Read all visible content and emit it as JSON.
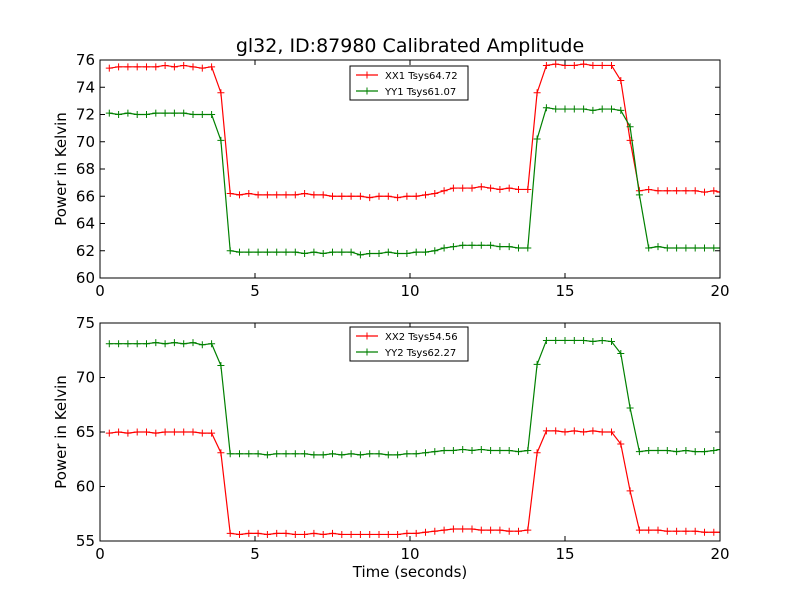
{
  "chart_data": {
    "type": "line",
    "title": "gl32, ID:87980 Calibrated Amplitude",
    "xlabel": "Time (seconds)",
    "colors": {
      "red": "#ff0000",
      "green": "#008000"
    },
    "grid": false,
    "subplots": [
      {
        "ylabel": "Power in Kelvin",
        "xlim": [
          0,
          20
        ],
        "ylim": [
          60,
          76
        ],
        "xticks": [
          "0",
          "5",
          "10",
          "15",
          "20"
        ],
        "yticks": [
          "60",
          "62",
          "64",
          "66",
          "68",
          "70",
          "72",
          "74",
          "76"
        ],
        "legend_position": "top-center",
        "series": [
          {
            "name": "XX1 Tsys64.72",
            "color": "#ff0000",
            "x": [
              0.3,
              0.6,
              0.9,
              1.2,
              1.5,
              1.8,
              2.1,
              2.4,
              2.7,
              3.0,
              3.3,
              3.6,
              3.9,
              4.2,
              4.5,
              4.8,
              5.1,
              5.4,
              5.7,
              6.0,
              6.3,
              6.6,
              6.9,
              7.2,
              7.5,
              7.8,
              8.1,
              8.4,
              8.7,
              9.0,
              9.3,
              9.6,
              9.9,
              10.2,
              10.5,
              10.8,
              11.1,
              11.4,
              11.7,
              12.0,
              12.3,
              12.6,
              12.9,
              13.2,
              13.5,
              13.8,
              14.1,
              14.4,
              14.7,
              15.0,
              15.3,
              15.6,
              15.9,
              16.2,
              16.5,
              16.8,
              17.1,
              17.4,
              17.7,
              18.0,
              18.3,
              18.6,
              18.9,
              19.2,
              19.5,
              19.8,
              20.0
            ],
            "y": [
              75.4,
              75.5,
              75.5,
              75.5,
              75.5,
              75.5,
              75.6,
              75.5,
              75.6,
              75.5,
              75.4,
              75.5,
              73.6,
              66.2,
              66.1,
              66.2,
              66.1,
              66.1,
              66.1,
              66.1,
              66.1,
              66.2,
              66.1,
              66.1,
              66.0,
              66.0,
              66.0,
              66.0,
              65.9,
              66.0,
              66.0,
              65.9,
              66.0,
              66.0,
              66.1,
              66.2,
              66.4,
              66.6,
              66.6,
              66.6,
              66.7,
              66.6,
              66.5,
              66.6,
              66.5,
              66.5,
              73.6,
              75.6,
              75.7,
              75.6,
              75.6,
              75.7,
              75.6,
              75.6,
              75.6,
              74.5,
              70.1,
              66.4,
              66.5,
              66.4,
              66.4,
              66.4,
              66.4,
              66.4,
              66.3,
              66.4,
              66.3
            ]
          },
          {
            "name": "YY1 Tsys61.07",
            "color": "#008000",
            "x": [
              0.3,
              0.6,
              0.9,
              1.2,
              1.5,
              1.8,
              2.1,
              2.4,
              2.7,
              3.0,
              3.3,
              3.6,
              3.9,
              4.2,
              4.5,
              4.8,
              5.1,
              5.4,
              5.7,
              6.0,
              6.3,
              6.6,
              6.9,
              7.2,
              7.5,
              7.8,
              8.1,
              8.4,
              8.7,
              9.0,
              9.3,
              9.6,
              9.9,
              10.2,
              10.5,
              10.8,
              11.1,
              11.4,
              11.7,
              12.0,
              12.3,
              12.6,
              12.9,
              13.2,
              13.5,
              13.8,
              14.1,
              14.4,
              14.7,
              15.0,
              15.3,
              15.6,
              15.9,
              16.2,
              16.5,
              16.8,
              17.1,
              17.4,
              17.7,
              18.0,
              18.3,
              18.6,
              18.9,
              19.2,
              19.5,
              19.8,
              20.0
            ],
            "y": [
              72.1,
              72.0,
              72.1,
              72.0,
              72.0,
              72.1,
              72.1,
              72.1,
              72.1,
              72.0,
              72.0,
              72.0,
              70.1,
              62.0,
              61.9,
              61.9,
              61.9,
              61.9,
              61.9,
              61.9,
              61.9,
              61.8,
              61.9,
              61.8,
              61.9,
              61.9,
              61.9,
              61.7,
              61.8,
              61.8,
              61.9,
              61.8,
              61.8,
              61.9,
              61.9,
              62.0,
              62.2,
              62.3,
              62.4,
              62.4,
              62.4,
              62.4,
              62.3,
              62.3,
              62.2,
              62.2,
              70.2,
              72.5,
              72.4,
              72.4,
              72.4,
              72.4,
              72.3,
              72.4,
              72.4,
              72.3,
              71.1,
              66.1,
              62.2,
              62.3,
              62.2,
              62.2,
              62.2,
              62.2,
              62.2,
              62.2,
              62.2
            ]
          }
        ]
      },
      {
        "ylabel": "Power in Kelvin",
        "xlim": [
          0,
          20
        ],
        "ylim": [
          55,
          75
        ],
        "xticks": [
          "0",
          "5",
          "10",
          "15",
          "20"
        ],
        "yticks": [
          "55",
          "60",
          "65",
          "70",
          "75"
        ],
        "legend_position": "top-center",
        "series": [
          {
            "name": "XX2 Tsys54.56",
            "color": "#ff0000",
            "x": [
              0.3,
              0.6,
              0.9,
              1.2,
              1.5,
              1.8,
              2.1,
              2.4,
              2.7,
              3.0,
              3.3,
              3.6,
              3.9,
              4.2,
              4.5,
              4.8,
              5.1,
              5.4,
              5.7,
              6.0,
              6.3,
              6.6,
              6.9,
              7.2,
              7.5,
              7.8,
              8.1,
              8.4,
              8.7,
              9.0,
              9.3,
              9.6,
              9.9,
              10.2,
              10.5,
              10.8,
              11.1,
              11.4,
              11.7,
              12.0,
              12.3,
              12.6,
              12.9,
              13.2,
              13.5,
              13.8,
              14.1,
              14.4,
              14.7,
              15.0,
              15.3,
              15.6,
              15.9,
              16.2,
              16.5,
              16.8,
              17.1,
              17.4,
              17.7,
              18.0,
              18.3,
              18.6,
              18.9,
              19.2,
              19.5,
              19.8,
              20.0
            ],
            "y": [
              64.9,
              65.0,
              64.9,
              65.0,
              65.0,
              64.9,
              65.0,
              65.0,
              65.0,
              65.0,
              64.9,
              64.9,
              63.1,
              55.7,
              55.6,
              55.7,
              55.7,
              55.6,
              55.7,
              55.7,
              55.6,
              55.6,
              55.7,
              55.6,
              55.7,
              55.6,
              55.6,
              55.6,
              55.6,
              55.6,
              55.6,
              55.6,
              55.7,
              55.7,
              55.8,
              55.9,
              56.0,
              56.1,
              56.1,
              56.1,
              56.0,
              56.0,
              56.0,
              55.9,
              55.9,
              56.0,
              63.1,
              65.1,
              65.1,
              65.0,
              65.1,
              65.0,
              65.1,
              65.0,
              65.0,
              63.9,
              59.6,
              56.0,
              56.0,
              56.0,
              55.9,
              55.9,
              55.9,
              55.9,
              55.8,
              55.8,
              55.8
            ]
          },
          {
            "name": "YY2 Tsys62.27",
            "color": "#008000",
            "x": [
              0.3,
              0.6,
              0.9,
              1.2,
              1.5,
              1.8,
              2.1,
              2.4,
              2.7,
              3.0,
              3.3,
              3.6,
              3.9,
              4.2,
              4.5,
              4.8,
              5.1,
              5.4,
              5.7,
              6.0,
              6.3,
              6.6,
              6.9,
              7.2,
              7.5,
              7.8,
              8.1,
              8.4,
              8.7,
              9.0,
              9.3,
              9.6,
              9.9,
              10.2,
              10.5,
              10.8,
              11.1,
              11.4,
              11.7,
              12.0,
              12.3,
              12.6,
              12.9,
              13.2,
              13.5,
              13.8,
              14.1,
              14.4,
              14.7,
              15.0,
              15.3,
              15.6,
              15.9,
              16.2,
              16.5,
              16.8,
              17.1,
              17.4,
              17.7,
              18.0,
              18.3,
              18.6,
              18.9,
              19.2,
              19.5,
              19.8,
              20.0
            ],
            "y": [
              73.1,
              73.1,
              73.1,
              73.1,
              73.1,
              73.2,
              73.1,
              73.2,
              73.1,
              73.2,
              73.0,
              73.1,
              71.1,
              63.0,
              63.0,
              63.0,
              63.0,
              62.9,
              63.0,
              63.0,
              63.0,
              63.0,
              62.9,
              62.9,
              63.0,
              62.9,
              63.0,
              62.9,
              63.0,
              63.0,
              62.9,
              62.9,
              63.0,
              63.0,
              63.1,
              63.2,
              63.3,
              63.3,
              63.4,
              63.3,
              63.4,
              63.3,
              63.3,
              63.3,
              63.2,
              63.3,
              71.2,
              73.4,
              73.4,
              73.4,
              73.4,
              73.4,
              73.3,
              73.4,
              73.3,
              72.2,
              67.2,
              63.2,
              63.3,
              63.3,
              63.3,
              63.2,
              63.3,
              63.2,
              63.2,
              63.3,
              63.4
            ]
          }
        ]
      }
    ]
  }
}
